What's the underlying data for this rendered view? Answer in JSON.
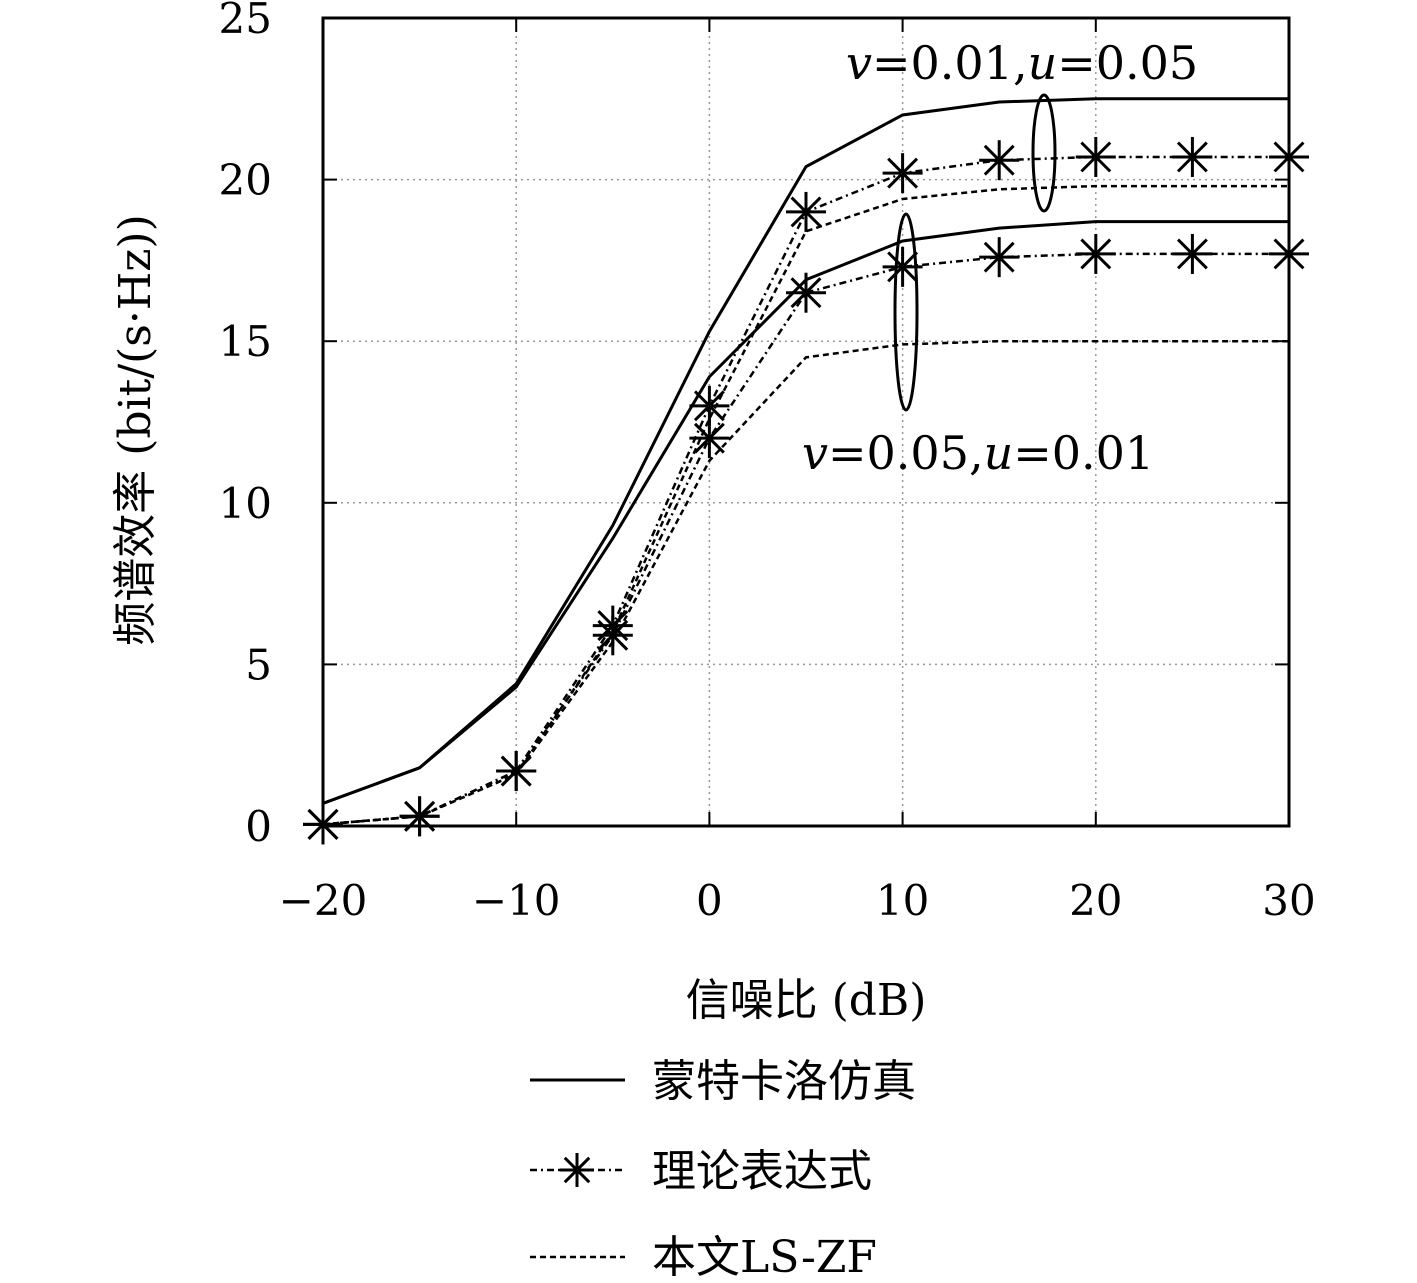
{
  "chart_data": {
    "type": "line",
    "xlabel": "信噪比 (dB)",
    "ylabel": "频谱效率 (bit/(s·Hz))",
    "xlim": [
      -20,
      30
    ],
    "ylim": [
      0,
      25
    ],
    "xticks": [
      -20,
      -10,
      0,
      10,
      20,
      30
    ],
    "xtick_labels": [
      "−20",
      "−10",
      "0",
      "10",
      "20",
      "30"
    ],
    "yticks": [
      0,
      5,
      10,
      15,
      20,
      25
    ],
    "ytick_labels": [
      "0",
      "5",
      "10",
      "15",
      "20",
      "25"
    ],
    "grid": true,
    "legend_position": "bottom",
    "legend": [
      {
        "label": "蒙特卡洛仿真",
        "style": "solid",
        "marker": "none"
      },
      {
        "label": "理论表达式",
        "style": "dashdot",
        "marker": "star"
      },
      {
        "label": "本文LS-ZF",
        "style": "dashed",
        "marker": "none"
      }
    ],
    "annotations": [
      {
        "text_v": "v",
        "text_rest1": "=0.01,",
        "text_u": "u",
        "text_rest2": "=0.05",
        "group": "upper"
      },
      {
        "text_v": "v",
        "text_rest1": "=0.05,",
        "text_u": "u",
        "text_rest2": "=0.01",
        "group": "lower"
      }
    ],
    "series": [
      {
        "group": "upper",
        "kind": "monte-carlo",
        "style": "solid",
        "x": [
          -20,
          -15,
          -10,
          -5,
          0,
          5,
          10,
          15,
          20,
          25,
          30
        ],
        "y": [
          0.7,
          1.8,
          4.4,
          9.3,
          15.3,
          20.4,
          22.0,
          22.4,
          22.5,
          22.5,
          22.5
        ]
      },
      {
        "group": "lower",
        "kind": "monte-carlo",
        "style": "solid",
        "x": [
          -20,
          -15,
          -10,
          -5,
          0,
          5,
          10,
          15,
          20,
          25,
          30
        ],
        "y": [
          0.7,
          1.8,
          4.3,
          8.9,
          13.9,
          16.9,
          18.1,
          18.5,
          18.7,
          18.7,
          18.7
        ]
      },
      {
        "group": "upper",
        "kind": "theory",
        "style": "dashdot",
        "x": [
          -20,
          -15,
          -10,
          -5,
          0,
          5,
          10,
          15,
          20,
          25,
          30
        ],
        "y": [
          0.05,
          0.3,
          1.7,
          6.2,
          13.0,
          19.0,
          20.2,
          20.6,
          20.7,
          20.7,
          20.7
        ]
      },
      {
        "group": "lower",
        "kind": "theory",
        "style": "dashdot",
        "x": [
          -20,
          -15,
          -10,
          -5,
          0,
          5,
          10,
          15,
          20,
          25,
          30
        ],
        "y": [
          0.05,
          0.3,
          1.7,
          5.9,
          12.0,
          16.5,
          17.3,
          17.6,
          17.7,
          17.7,
          17.7
        ]
      },
      {
        "group": "upper",
        "kind": "ls-zf",
        "style": "dashed",
        "x": [
          -20,
          -15,
          -10,
          -5,
          0,
          5,
          10,
          15,
          20,
          25,
          30
        ],
        "y": [
          0.05,
          0.3,
          1.6,
          6.0,
          12.6,
          18.4,
          19.4,
          19.7,
          19.8,
          19.8,
          19.8
        ]
      },
      {
        "group": "lower",
        "kind": "ls-zf",
        "style": "dashed",
        "x": [
          -20,
          -15,
          -10,
          -5,
          0,
          5,
          10,
          15,
          20,
          25,
          30
        ],
        "y": [
          0.05,
          0.3,
          1.6,
          5.7,
          11.3,
          14.5,
          14.9,
          15.0,
          15.0,
          15.0,
          15.0
        ]
      }
    ]
  }
}
